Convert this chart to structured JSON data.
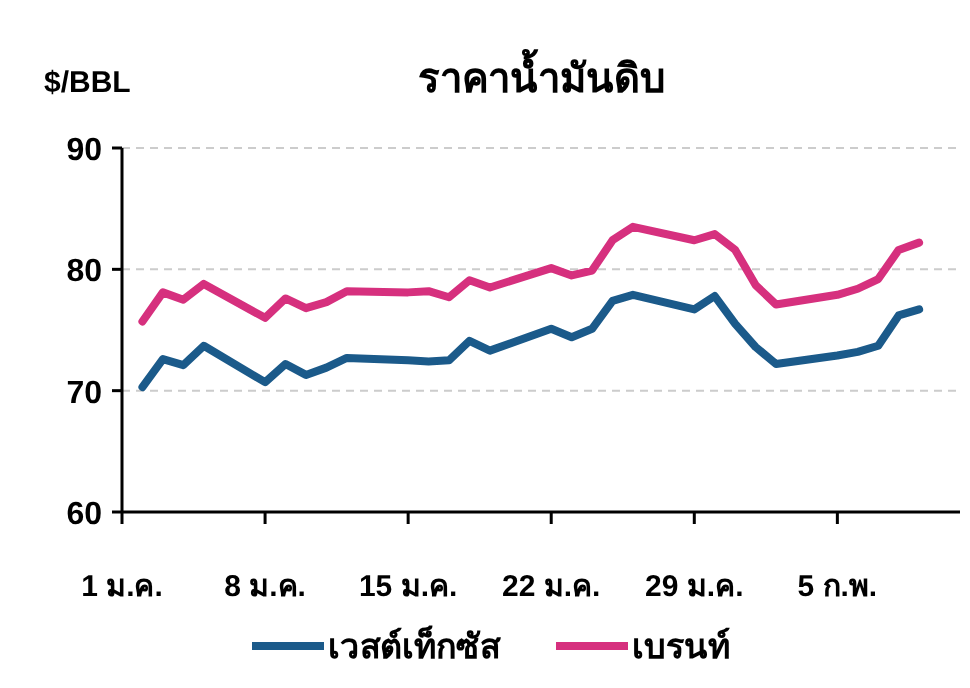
{
  "chart_data": {
    "type": "line",
    "title": "ราคาน้ำมันดิบ",
    "ylabel": "$/BBL",
    "x": [
      "--01-02",
      "--01-03",
      "--01-04",
      "--01-05",
      "--01-08",
      "--01-09",
      "--01-10",
      "--01-11",
      "--01-12",
      "--01-15",
      "--01-16",
      "--01-17",
      "--01-18",
      "--01-19",
      "--01-22",
      "--01-23",
      "--01-24",
      "--01-25",
      "--01-26",
      "--01-29",
      "--01-30",
      "--01-31",
      "--02-01",
      "--02-02",
      "--02-05",
      "--02-06",
      "--02-07",
      "--02-08",
      "--02-09"
    ],
    "series": [
      {
        "name": "เวสต์เท็กซัส",
        "color": "#1b5a8a",
        "values": [
          70.3,
          72.6,
          72.1,
          73.7,
          70.7,
          72.2,
          71.3,
          71.9,
          72.7,
          72.5,
          72.4,
          72.5,
          74.1,
          73.3,
          75.1,
          74.4,
          75.1,
          77.4,
          77.9,
          76.7,
          77.8,
          75.5,
          73.6,
          72.2,
          72.9,
          73.2,
          73.7,
          76.2,
          76.7
        ]
      },
      {
        "name": "เบรนท์",
        "color": "#d6307e",
        "values": [
          75.7,
          78.1,
          77.5,
          78.8,
          76.0,
          77.6,
          76.8,
          77.3,
          78.2,
          78.1,
          78.2,
          77.7,
          79.1,
          78.5,
          80.1,
          79.5,
          79.9,
          82.4,
          83.5,
          82.4,
          82.9,
          81.6,
          78.7,
          77.1,
          77.9,
          78.4,
          79.2,
          81.6,
          82.2
        ]
      }
    ],
    "xlim": [
      "--01-01",
      "--02-11"
    ],
    "xticks": [
      {
        "value": "--01-01",
        "label": "1 ม.ค."
      },
      {
        "value": "--01-08",
        "label": "8 ม.ค."
      },
      {
        "value": "--01-15",
        "label": "15 ม.ค."
      },
      {
        "value": "--01-22",
        "label": "22 ม.ค."
      },
      {
        "value": "--01-29",
        "label": "29 ม.ค."
      },
      {
        "value": "--02-05",
        "label": "5 ก.พ."
      }
    ],
    "ylim": [
      60,
      90
    ],
    "yticks": [
      60,
      70,
      80,
      90
    ],
    "grid": "y",
    "legend": "bottom",
    "marker": "none",
    "line_style": "solid"
  }
}
